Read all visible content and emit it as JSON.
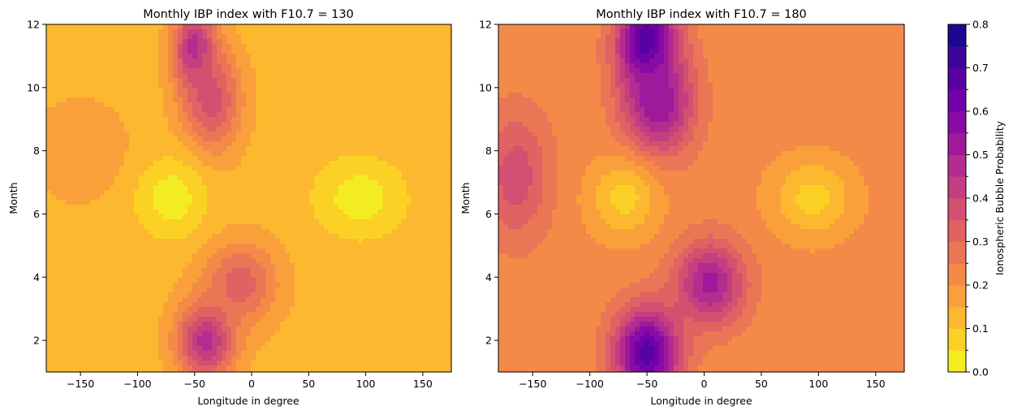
{
  "chart_data": [
    {
      "type": "contour",
      "title": "Monthly IBP index with F10.7 = 130",
      "xlabel": "Longitude in degree",
      "ylabel": "Month",
      "xlim": [
        -180,
        175
      ],
      "ylim": [
        1,
        12
      ],
      "xticks": [
        -150,
        -100,
        -50,
        0,
        50,
        100,
        150
      ],
      "yticks": [
        2,
        4,
        6,
        8,
        10,
        12
      ],
      "features": [
        {
          "lon": -50,
          "month": 11.2,
          "value": 0.5,
          "spread_lon": 18,
          "spread_month": 1.3
        },
        {
          "lon": -35,
          "month": 9.6,
          "value": 0.38,
          "spread_lon": 25,
          "spread_month": 1.6
        },
        {
          "lon": -40,
          "month": 2.0,
          "value": 0.48,
          "spread_lon": 25,
          "spread_month": 1.2
        },
        {
          "lon": -10,
          "month": 3.8,
          "value": 0.33,
          "spread_lon": 32,
          "spread_month": 1.3
        },
        {
          "lon": -150,
          "month": 8.0,
          "value": 0.2,
          "spread_lon": 40,
          "spread_month": 1.5
        },
        {
          "lon": -70,
          "month": 6.5,
          "value": 0.02,
          "spread_lon": 30,
          "spread_month": 1.2
        },
        {
          "lon": 95,
          "month": 6.5,
          "value": 0.02,
          "spread_lon": 38,
          "spread_month": 1.2
        }
      ]
    },
    {
      "type": "contour",
      "title": "Monthly IBP index with F10.7 = 180",
      "xlabel": "Longitude in degree",
      "ylabel": "Month",
      "xlim": [
        -180,
        175
      ],
      "ylim": [
        1,
        12
      ],
      "xticks": [
        -150,
        -100,
        -50,
        0,
        50,
        100,
        150
      ],
      "yticks": [
        2,
        4,
        6,
        8,
        10,
        12
      ],
      "features": [
        {
          "lon": -50,
          "month": 11.4,
          "value": 0.72,
          "spread_lon": 25,
          "spread_month": 1.5
        },
        {
          "lon": -40,
          "month": 9.5,
          "value": 0.55,
          "spread_lon": 30,
          "spread_month": 1.6
        },
        {
          "lon": -50,
          "month": 1.6,
          "value": 0.68,
          "spread_lon": 28,
          "spread_month": 1.4
        },
        {
          "lon": 5,
          "month": 3.8,
          "value": 0.52,
          "spread_lon": 30,
          "spread_month": 1.3
        },
        {
          "lon": -165,
          "month": 7.2,
          "value": 0.38,
          "spread_lon": 30,
          "spread_month": 2.0
        },
        {
          "lon": 150,
          "month": 10.0,
          "value": 0.25,
          "spread_lon": 40,
          "spread_month": 1.5
        },
        {
          "lon": -70,
          "month": 6.5,
          "value": 0.08,
          "spread_lon": 30,
          "spread_month": 1.2
        },
        {
          "lon": 95,
          "month": 6.5,
          "value": 0.08,
          "spread_lon": 35,
          "spread_month": 1.2
        }
      ]
    }
  ],
  "colorbar": {
    "label": "Ionospheric Bubble Probability",
    "range": [
      0.0,
      0.8
    ],
    "ticks": [
      "0.0",
      "0.1",
      "0.2",
      "0.3",
      "0.4",
      "0.5",
      "0.6",
      "0.7",
      "0.8"
    ],
    "levels": 16,
    "colormap": "plasma_r",
    "colors": [
      "#f0f921",
      "#fcce25",
      "#fca636",
      "#f2844b",
      "#e16462",
      "#cc4778",
      "#b12a90",
      "#8f0da4",
      "#6a00a8",
      "#41049d",
      "#0d0887"
    ]
  }
}
